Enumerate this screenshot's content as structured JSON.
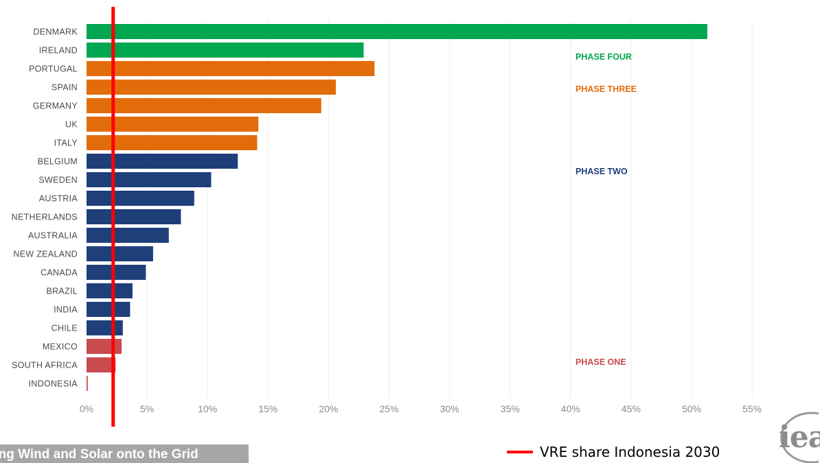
{
  "chart_data": {
    "type": "bar",
    "orientation": "horizontal",
    "title": "",
    "xlabel": "",
    "ylabel": "",
    "xlim": [
      0,
      55
    ],
    "x_ticks": [
      "0%",
      "5%",
      "10%",
      "15%",
      "20%",
      "25%",
      "30%",
      "35%",
      "40%",
      "45%",
      "50%",
      "55%"
    ],
    "grid": "vertical",
    "categories": [
      "DENMARK",
      "IRELAND",
      "PORTUGAL",
      "SPAIN",
      "GERMANY",
      "UK",
      "ITALY",
      "BELGIUM",
      "SWEDEN",
      "AUSTRIA",
      "NETHERLANDS",
      "AUSTRALIA",
      "NEW ZEALAND",
      "CANADA",
      "BRAZIL",
      "INDIA",
      "CHILE",
      "MEXICO",
      "SOUTH AFRICA",
      "INDONESIA"
    ],
    "values": [
      51.3,
      22.9,
      23.8,
      20.6,
      19.4,
      14.2,
      14.1,
      12.5,
      10.3,
      8.9,
      7.8,
      6.8,
      5.5,
      4.9,
      3.8,
      3.6,
      3.0,
      2.9,
      2.4,
      0.1
    ],
    "phase_of_category": [
      4,
      4,
      3,
      3,
      3,
      3,
      3,
      2,
      2,
      2,
      2,
      2,
      2,
      2,
      2,
      2,
      2,
      1,
      1,
      1
    ],
    "phases": [
      {
        "id": 4,
        "label": "PHASE FOUR",
        "color": "#00a650"
      },
      {
        "id": 3,
        "label": "PHASE THREE",
        "color": "#e36c0a"
      },
      {
        "id": 2,
        "label": "PHASE TWO",
        "color": "#1f3f7a"
      },
      {
        "id": 1,
        "label": "PHASE ONE",
        "color": "#c94a4f"
      }
    ],
    "reference_line": {
      "value": 2.2,
      "color": "#ff0000"
    }
  },
  "legend": {
    "label": "VRE share Indonesia 2030",
    "color": "#ff0000"
  },
  "caption": "ting Wind and Solar onto the Grid",
  "logo": "iea"
}
